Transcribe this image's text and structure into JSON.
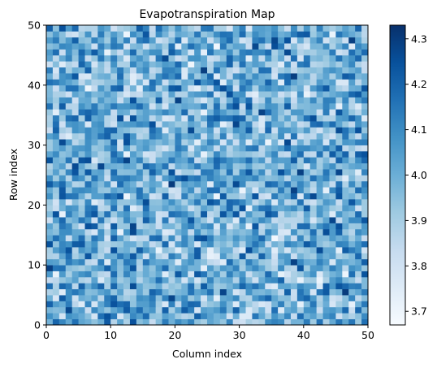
{
  "chart_data": {
    "type": "heatmap",
    "title": "Evapotranspiration Map",
    "xlabel": "Column index",
    "ylabel": "Row index",
    "xlim": [
      0,
      50
    ],
    "ylim": [
      0,
      50
    ],
    "x_ticks": [
      "0",
      "10",
      "20",
      "30",
      "40",
      "50"
    ],
    "y_ticks": [
      "0",
      "10",
      "20",
      "30",
      "40",
      "50"
    ],
    "grid_size": [
      50,
      50
    ],
    "colormap": "Blues",
    "colormap_stops": [
      "#f7fbff",
      "#deebf7",
      "#c6dbef",
      "#9ecae1",
      "#6baed6",
      "#4292c6",
      "#2171b5",
      "#08519c",
      "#08306b"
    ],
    "color_range": [
      3.67,
      4.33
    ],
    "colorbar_ticks": [
      "3.7",
      "3.8",
      "3.9",
      "4.0",
      "4.1",
      "4.2",
      "4.3"
    ],
    "cell_value_stats": {
      "min": 3.67,
      "max": 4.33,
      "mean": 4.0
    },
    "cell_values_note": "random per-cell values (not individually readable)",
    "grid": false
  }
}
